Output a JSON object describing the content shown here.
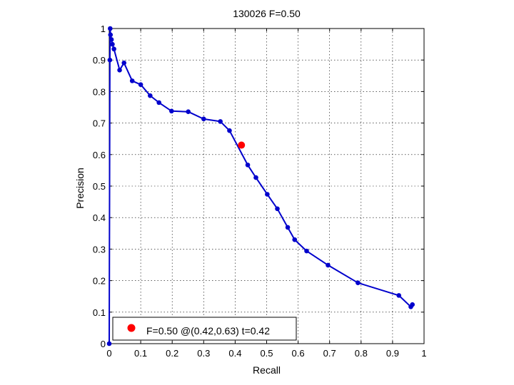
{
  "chart_data": {
    "type": "line",
    "title": "130026 F=0.50",
    "xlabel": "Recall",
    "ylabel": "Precision",
    "xlim": [
      0,
      1
    ],
    "ylim": [
      0,
      1
    ],
    "x_ticks": [
      0,
      0.1,
      0.2,
      0.3,
      0.4,
      0.5,
      0.6,
      0.7,
      0.8,
      0.9,
      1
    ],
    "y_ticks": [
      0,
      0.1,
      0.2,
      0.3,
      0.4,
      0.5,
      0.6,
      0.7,
      0.8,
      0.9,
      1
    ],
    "x_tick_labels": [
      "0",
      "0.1",
      "0.2",
      "0.3",
      "0.4",
      "0.5",
      "0.6",
      "0.7",
      "0.8",
      "0.9",
      "1"
    ],
    "y_tick_labels": [
      "0",
      "0.1",
      "0.2",
      "0.3",
      "0.4",
      "0.5",
      "0.6",
      "0.7",
      "0.8",
      "0.9",
      "1"
    ],
    "grid": true,
    "legend_position": "bottom-left",
    "series": [
      {
        "color": "#0000cc",
        "x": [
          0.963,
          0.958,
          0.92,
          0.79,
          0.695,
          0.627,
          0.589,
          0.567,
          0.534,
          0.502,
          0.466,
          0.44,
          0.382,
          0.353,
          0.3,
          0.251,
          0.198,
          0.158,
          0.13,
          0.1,
          0.073,
          0.047,
          0.033,
          0.015,
          0.01,
          0.007,
          0.004,
          0.003,
          0.002,
          0.0
        ],
        "y": [
          0.124,
          0.117,
          0.153,
          0.193,
          0.249,
          0.294,
          0.33,
          0.369,
          0.428,
          0.474,
          0.527,
          0.567,
          0.676,
          0.705,
          0.713,
          0.736,
          0.738,
          0.765,
          0.787,
          0.822,
          0.834,
          0.891,
          0.868,
          0.935,
          0.95,
          0.965,
          0.98,
          1.0,
          0.9,
          0.0
        ]
      }
    ],
    "highlight": {
      "x": 0.42,
      "y": 0.63,
      "color": "#ff0000"
    },
    "legend_entries": [
      {
        "label": "F=0.50 @(0.42,0.63) t=0.42",
        "color": "#ff0000"
      }
    ]
  }
}
